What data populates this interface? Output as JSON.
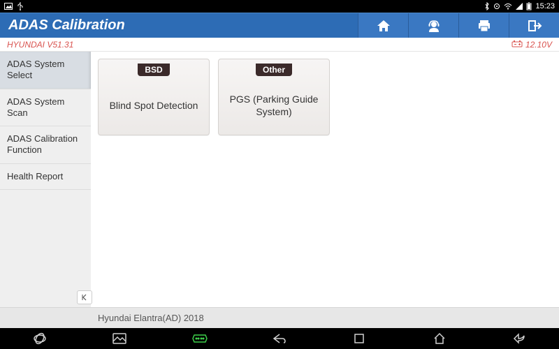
{
  "status_bar": {
    "time": "15:23"
  },
  "header": {
    "title": "ADAS Calibration"
  },
  "info": {
    "vehicle_version": "HYUNDAI V51.31",
    "voltage": "12.10V"
  },
  "sidebar": {
    "items": [
      {
        "label": "ADAS System Select",
        "active": true
      },
      {
        "label": "ADAS System Scan",
        "active": false
      },
      {
        "label": "ADAS Calibration Function",
        "active": false
      },
      {
        "label": "Health Report",
        "active": false
      }
    ]
  },
  "cards": [
    {
      "badge": "BSD",
      "label": "Blind Spot Detection"
    },
    {
      "badge": "Other",
      "label": "PGS (Parking Guide System)"
    }
  ],
  "footer": {
    "vehicle": "Hyundai Elantra(AD) 2018"
  },
  "colors": {
    "header_bg": "#2d6cb5",
    "accent_red": "#d9534f",
    "sidebar_bg": "#efefef",
    "sidebar_active": "#d8dde3",
    "card_badge_bg": "#3b2a2a"
  }
}
